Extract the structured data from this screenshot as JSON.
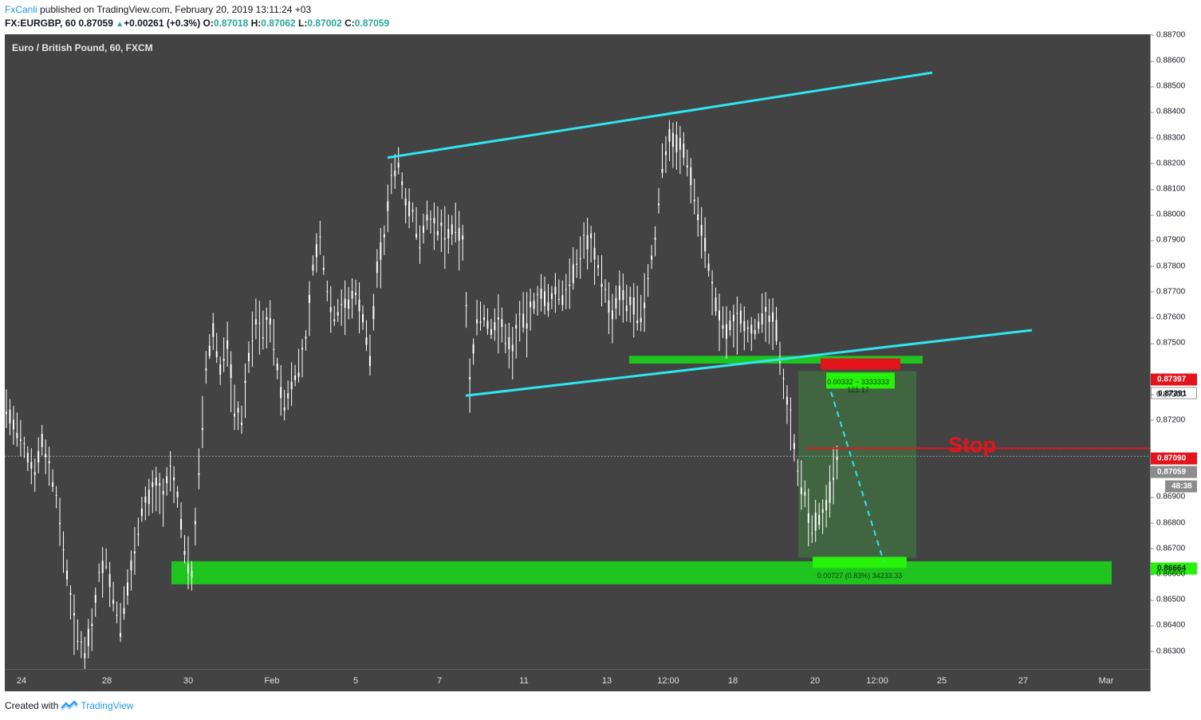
{
  "header": {
    "author": "FxCanli",
    "published_text": " published on TradingView.com, February 20, 2019 13:11:24 +03",
    "symbol": "FX:EURGBP, 60",
    "last": "0.87059",
    "change": "+0.00261 (+0.3%)",
    "o_label": "O:",
    "o_value": "0.87018",
    "h_label": "H:",
    "h_value": "0.87062",
    "l_label": "L:",
    "l_value": "0.87002",
    "c_label": "C:",
    "c_value": "0.87059"
  },
  "legend": "Euro / British Pound, 60, FXCM",
  "price_axis": {
    "ticks": [
      "0.88700",
      "0.88600",
      "0.88500",
      "0.88400",
      "0.88300",
      "0.88200",
      "0.88100",
      "0.88000",
      "0.87900",
      "0.87800",
      "0.87700",
      "0.87600",
      "0.87500",
      "0.87300",
      "0.87200",
      "0.86900",
      "0.86800",
      "0.86700",
      "0.86600",
      "0.86500",
      "0.86400",
      "0.86300"
    ],
    "labels": {
      "stop_top": "0.87397",
      "entry": "0.87391",
      "stop_line": "0.87090",
      "last_price": "0.87059",
      "countdown": "48:38",
      "target": "0.86664"
    }
  },
  "time_axis": [
    "24",
    "28",
    "30",
    "Feb",
    "5",
    "7",
    "11",
    "13",
    "12:00",
    "18",
    "20",
    "12:00",
    "25",
    "27",
    "Mar"
  ],
  "annotations": {
    "stop_text": "Stop",
    "risk_label": "0.00332 ~ 3333333",
    "risk_label2": "121.17",
    "reward_label": "0.00727 (0.83%) 34233.33"
  },
  "colors": {
    "background": "#434343",
    "channel": "#2ee6f0",
    "zone": "#1fc41f",
    "stop": "#e5141c",
    "candle": "#ffffff"
  },
  "chart_data": {
    "type": "candlestick",
    "title": "Euro / British Pound, 60, FXCM",
    "ylim": [
      0.8626,
      0.8875
    ],
    "x_categories": [
      "24",
      "28",
      "30",
      "Feb",
      "5",
      "7",
      "11",
      "13",
      "12:00",
      "18",
      "20",
      "12:00",
      "25",
      "27",
      "Mar"
    ],
    "close_path": [
      [
        0,
        0.8725
      ],
      [
        2,
        0.8718
      ],
      [
        4,
        0.8712
      ],
      [
        6,
        0.8705
      ],
      [
        8,
        0.87
      ],
      [
        10,
        0.8712
      ],
      [
        12,
        0.8702
      ],
      [
        14,
        0.869
      ],
      [
        16,
        0.867
      ],
      [
        18,
        0.865
      ],
      [
        20,
        0.8635
      ],
      [
        22,
        0.863
      ],
      [
        24,
        0.864
      ],
      [
        26,
        0.866
      ],
      [
        28,
        0.8665
      ],
      [
        30,
        0.865
      ],
      [
        32,
        0.864
      ],
      [
        34,
        0.8655
      ],
      [
        36,
        0.867
      ],
      [
        38,
        0.8685
      ],
      [
        40,
        0.869
      ],
      [
        42,
        0.8695
      ],
      [
        44,
        0.869
      ],
      [
        46,
        0.87
      ],
      [
        48,
        0.869
      ],
      [
        50,
        0.867
      ],
      [
        52,
        0.866
      ],
      [
        54,
        0.87
      ],
      [
        56,
        0.874
      ],
      [
        58,
        0.8755
      ],
      [
        60,
        0.874
      ],
      [
        62,
        0.875
      ],
      [
        64,
        0.8725
      ],
      [
        66,
        0.872
      ],
      [
        68,
        0.8745
      ],
      [
        70,
        0.876
      ],
      [
        72,
        0.8755
      ],
      [
        74,
        0.876
      ],
      [
        76,
        0.874
      ],
      [
        78,
        0.8725
      ],
      [
        80,
        0.8735
      ],
      [
        82,
        0.874
      ],
      [
        84,
        0.875
      ],
      [
        86,
        0.878
      ],
      [
        88,
        0.879
      ],
      [
        90,
        0.877
      ],
      [
        92,
        0.876
      ],
      [
        94,
        0.8765
      ],
      [
        96,
        0.8765
      ],
      [
        98,
        0.877
      ],
      [
        100,
        0.876
      ],
      [
        102,
        0.8745
      ],
      [
        104,
        0.878
      ],
      [
        106,
        0.879
      ],
      [
        108,
        0.8815
      ],
      [
        110,
        0.882
      ],
      [
        112,
        0.8805
      ],
      [
        114,
        0.88
      ],
      [
        116,
        0.879
      ],
      [
        118,
        0.88
      ],
      [
        120,
        0.8795
      ],
      [
        122,
        0.8795
      ],
      [
        124,
        0.8792
      ],
      [
        126,
        0.8795
      ],
      [
        128,
        0.879
      ],
      [
        130,
        0.8735
      ],
      [
        132,
        0.876
      ],
      [
        134,
        0.876
      ],
      [
        136,
        0.8755
      ],
      [
        138,
        0.876
      ],
      [
        140,
        0.8752
      ],
      [
        142,
        0.8748
      ],
      [
        144,
        0.876
      ],
      [
        146,
        0.876
      ],
      [
        148,
        0.8765
      ],
      [
        150,
        0.877
      ],
      [
        152,
        0.8765
      ],
      [
        154,
        0.877
      ],
      [
        156,
        0.8768
      ],
      [
        158,
        0.8775
      ],
      [
        160,
        0.878
      ],
      [
        162,
        0.879
      ],
      [
        164,
        0.879
      ],
      [
        166,
        0.878
      ],
      [
        168,
        0.877
      ],
      [
        170,
        0.876
      ],
      [
        172,
        0.877
      ],
      [
        174,
        0.8765
      ],
      [
        176,
        0.8765
      ],
      [
        178,
        0.876
      ],
      [
        180,
        0.8775
      ],
      [
        182,
        0.879
      ],
      [
        184,
        0.882
      ],
      [
        186,
        0.883
      ],
      [
        188,
        0.8828
      ],
      [
        190,
        0.8825
      ],
      [
        192,
        0.8815
      ],
      [
        194,
        0.88
      ],
      [
        196,
        0.879
      ],
      [
        198,
        0.877
      ],
      [
        200,
        0.876
      ],
      [
        202,
        0.8755
      ],
      [
        204,
        0.8758
      ],
      [
        206,
        0.876
      ],
      [
        208,
        0.8755
      ],
      [
        210,
        0.8755
      ],
      [
        212,
        0.876
      ],
      [
        214,
        0.876
      ],
      [
        216,
        0.8755
      ],
      [
        218,
        0.8735
      ],
      [
        220,
        0.872
      ],
      [
        222,
        0.87
      ],
      [
        224,
        0.869
      ],
      [
        226,
        0.8678
      ],
      [
        228,
        0.8682
      ],
      [
        230,
        0.8685
      ],
      [
        232,
        0.87
      ],
      [
        234,
        0.8706
      ]
    ],
    "levels": {
      "support_zone": [
        0.8656,
        0.8665
      ],
      "upper_zone": [
        0.8742,
        0.8745
      ],
      "stop": 0.8709,
      "target": 0.86664,
      "entry": 0.87391,
      "last": 0.87059
    }
  }
}
